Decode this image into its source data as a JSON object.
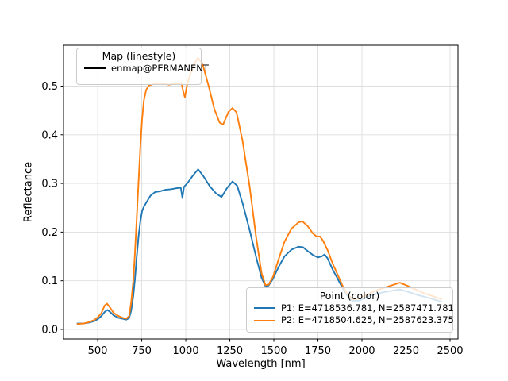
{
  "chart_data": {
    "type": "line",
    "title": "",
    "xlabel": "Wavelength [nm]",
    "ylabel": "Reflectance",
    "xlim": [
      306,
      2545
    ],
    "ylim": [
      -0.0196,
      0.584
    ],
    "grid": true,
    "legend_positions": {
      "map": "upper left",
      "point": "lower right"
    },
    "x_ticks": [
      500,
      750,
      1000,
      1250,
      1500,
      1750,
      2000,
      2250,
      2500
    ],
    "x_tick_labels": [
      "500",
      "750",
      "1000",
      "1250",
      "1500",
      "1750",
      "2000",
      "2250",
      "2500"
    ],
    "y_ticks": [
      0.0,
      0.1,
      0.2,
      0.3,
      0.4,
      0.5
    ],
    "y_tick_labels": [
      "0.0",
      "0.1",
      "0.2",
      "0.3",
      "0.4",
      "0.5"
    ],
    "series": [
      {
        "name": "P1: E=4718536.781, N=2587471.781",
        "color": "#1f77b4",
        "points": [
          [
            385,
            0.012
          ],
          [
            420,
            0.012
          ],
          [
            450,
            0.014
          ],
          [
            480,
            0.017
          ],
          [
            500,
            0.021
          ],
          [
            520,
            0.027
          ],
          [
            540,
            0.036
          ],
          [
            555,
            0.04
          ],
          [
            570,
            0.036
          ],
          [
            590,
            0.029
          ],
          [
            615,
            0.024
          ],
          [
            640,
            0.022
          ],
          [
            662,
            0.02
          ],
          [
            678,
            0.023
          ],
          [
            690,
            0.038
          ],
          [
            702,
            0.068
          ],
          [
            712,
            0.105
          ],
          [
            722,
            0.15
          ],
          [
            732,
            0.192
          ],
          [
            742,
            0.222
          ],
          [
            752,
            0.243
          ],
          [
            762,
            0.252
          ],
          [
            778,
            0.262
          ],
          [
            800,
            0.275
          ],
          [
            825,
            0.282
          ],
          [
            855,
            0.284
          ],
          [
            885,
            0.287
          ],
          [
            915,
            0.288
          ],
          [
            945,
            0.29
          ],
          [
            972,
            0.291
          ],
          [
            981,
            0.27
          ],
          [
            990,
            0.293
          ],
          [
            1010,
            0.301
          ],
          [
            1040,
            0.316
          ],
          [
            1070,
            0.329
          ],
          [
            1100,
            0.315
          ],
          [
            1135,
            0.295
          ],
          [
            1170,
            0.28
          ],
          [
            1203,
            0.272
          ],
          [
            1235,
            0.291
          ],
          [
            1265,
            0.304
          ],
          [
            1292,
            0.295
          ],
          [
            1325,
            0.256
          ],
          [
            1365,
            0.2
          ],
          [
            1400,
            0.148
          ],
          [
            1430,
            0.106
          ],
          [
            1452,
            0.089
          ],
          [
            1470,
            0.09
          ],
          [
            1495,
            0.104
          ],
          [
            1525,
            0.127
          ],
          [
            1560,
            0.15
          ],
          [
            1600,
            0.164
          ],
          [
            1640,
            0.17
          ],
          [
            1665,
            0.169
          ],
          [
            1695,
            0.16
          ],
          [
            1725,
            0.152
          ],
          [
            1750,
            0.148
          ],
          [
            1772,
            0.15
          ],
          [
            1788,
            0.154
          ],
          [
            1805,
            0.146
          ],
          [
            1835,
            0.122
          ],
          [
            1862,
            0.104
          ],
          [
            1888,
            0.086
          ],
          [
            1915,
            0.07
          ],
          [
            1945,
            0.059
          ],
          [
            1985,
            0.059
          ],
          [
            2030,
            0.067
          ],
          [
            2080,
            0.073
          ],
          [
            2130,
            0.077
          ],
          [
            2180,
            0.08
          ],
          [
            2215,
            0.082
          ],
          [
            2255,
            0.078
          ],
          [
            2305,
            0.072
          ],
          [
            2355,
            0.067
          ],
          [
            2405,
            0.062
          ],
          [
            2450,
            0.057
          ]
        ]
      },
      {
        "name": "P2: E=4718504.625, N=2587623.375",
        "color": "#ff7f0e",
        "points": [
          [
            385,
            0.011
          ],
          [
            420,
            0.012
          ],
          [
            450,
            0.015
          ],
          [
            480,
            0.019
          ],
          [
            500,
            0.025
          ],
          [
            520,
            0.033
          ],
          [
            540,
            0.049
          ],
          [
            553,
            0.053
          ],
          [
            570,
            0.045
          ],
          [
            590,
            0.034
          ],
          [
            615,
            0.028
          ],
          [
            640,
            0.024
          ],
          [
            662,
            0.022
          ],
          [
            678,
            0.027
          ],
          [
            690,
            0.055
          ],
          [
            702,
            0.1
          ],
          [
            712,
            0.16
          ],
          [
            722,
            0.23
          ],
          [
            732,
            0.305
          ],
          [
            742,
            0.375
          ],
          [
            752,
            0.432
          ],
          [
            762,
            0.47
          ],
          [
            775,
            0.492
          ],
          [
            790,
            0.501
          ],
          [
            815,
            0.504
          ],
          [
            845,
            0.506
          ],
          [
            875,
            0.505
          ],
          [
            905,
            0.503
          ],
          [
            935,
            0.505
          ],
          [
            960,
            0.506
          ],
          [
            975,
            0.507
          ],
          [
            985,
            0.49
          ],
          [
            995,
            0.477
          ],
          [
            1008,
            0.503
          ],
          [
            1025,
            0.524
          ],
          [
            1048,
            0.546
          ],
          [
            1070,
            0.558
          ],
          [
            1095,
            0.546
          ],
          [
            1130,
            0.5
          ],
          [
            1162,
            0.453
          ],
          [
            1192,
            0.425
          ],
          [
            1212,
            0.421
          ],
          [
            1242,
            0.447
          ],
          [
            1265,
            0.455
          ],
          [
            1288,
            0.446
          ],
          [
            1322,
            0.388
          ],
          [
            1362,
            0.295
          ],
          [
            1400,
            0.188
          ],
          [
            1430,
            0.116
          ],
          [
            1452,
            0.091
          ],
          [
            1470,
            0.092
          ],
          [
            1495,
            0.108
          ],
          [
            1525,
            0.142
          ],
          [
            1560,
            0.18
          ],
          [
            1600,
            0.207
          ],
          [
            1640,
            0.22
          ],
          [
            1662,
            0.222
          ],
          [
            1692,
            0.212
          ],
          [
            1722,
            0.197
          ],
          [
            1742,
            0.191
          ],
          [
            1762,
            0.191
          ],
          [
            1778,
            0.183
          ],
          [
            1805,
            0.163
          ],
          [
            1835,
            0.134
          ],
          [
            1865,
            0.11
          ],
          [
            1892,
            0.088
          ],
          [
            1918,
            0.072
          ],
          [
            1948,
            0.062
          ],
          [
            1988,
            0.064
          ],
          [
            2030,
            0.072
          ],
          [
            2080,
            0.08
          ],
          [
            2130,
            0.086
          ],
          [
            2180,
            0.092
          ],
          [
            2215,
            0.096
          ],
          [
            2255,
            0.09
          ],
          [
            2305,
            0.082
          ],
          [
            2355,
            0.074
          ],
          [
            2405,
            0.068
          ],
          [
            2450,
            0.062
          ]
        ]
      }
    ],
    "legends": {
      "map": {
        "title": "Map (linestyle)",
        "items": [
          {
            "label": "enmap@PERMANENT",
            "color": "#000000"
          }
        ]
      },
      "point": {
        "title": "Point (color)"
      }
    },
    "style": {
      "grid_color": "#dedede",
      "axis_color": "#000000",
      "background": "#ffffff"
    }
  }
}
